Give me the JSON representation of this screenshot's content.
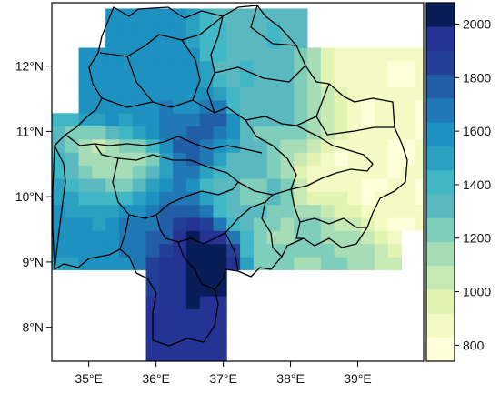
{
  "map": {
    "x_ticks": [
      "35°E",
      "36°E",
      "37°E",
      "38°E",
      "39°E"
    ],
    "y_ticks": [
      "12°N",
      "11°N",
      "10°N",
      "9°N",
      "8°N"
    ],
    "lon_range": [
      34.45,
      39.98
    ],
    "lat_range": [
      7.48,
      12.97
    ],
    "tick_lons": [
      35,
      36,
      37,
      38,
      39
    ],
    "tick_lats": [
      12,
      11,
      10,
      9,
      8
    ]
  },
  "colorbar": {
    "labels": [
      "2000",
      "1800",
      "1600",
      "1400",
      "1200",
      "1000",
      "800"
    ],
    "values": [
      2000,
      1800,
      1600,
      1400,
      1200,
      1000,
      800
    ],
    "min": 740,
    "max": 2080,
    "colors": [
      "#ffffd9",
      "#f3fac4",
      "#e3f3b2",
      "#c7e9b4",
      "#a6dcb6",
      "#7fcdbb",
      "#5ab9c0",
      "#41b6c4",
      "#2ca0c1",
      "#1d91c0",
      "#2078b4",
      "#225ea8",
      "#233f97",
      "#253494",
      "#081d58"
    ]
  },
  "chart_data": {
    "type": "heatmap",
    "xlabel": "",
    "ylabel": "",
    "x_tick_labels": [
      "35°E",
      "36°E",
      "37°E",
      "38°E",
      "39°E"
    ],
    "y_tick_labels": [
      "12°N",
      "11°N",
      "10°N",
      "9°N",
      "8°N"
    ],
    "colorbar_ticks": [
      800,
      1000,
      1200,
      1400,
      1600,
      1800,
      2000
    ],
    "value_range": [
      740,
      2080
    ],
    "grid_note": "gridded precipitation-like field, 0.2 degree cells, high values (~1900-2050) in south-central part near 36.5E 9N, low values (~800-900) in east near 39E 10.5-11.5N",
    "samples": [
      {
        "lon": 36.5,
        "lat": 9.1,
        "value": 2050
      },
      {
        "lon": 36.3,
        "lat": 8.0,
        "value": 1900
      },
      {
        "lon": 36.2,
        "lat": 9.5,
        "value": 1800
      },
      {
        "lon": 36.5,
        "lat": 10.9,
        "value": 1700
      },
      {
        "lon": 35.2,
        "lat": 9.5,
        "value": 1550
      },
      {
        "lon": 37.5,
        "lat": 12.1,
        "value": 1350
      },
      {
        "lon": 38.5,
        "lat": 9.3,
        "value": 1150
      },
      {
        "lon": 39.1,
        "lat": 10.3,
        "value": 900
      },
      {
        "lon": 39.0,
        "lat": 11.5,
        "value": 850
      },
      {
        "lon": 35.3,
        "lat": 10.2,
        "value": 1050
      }
    ]
  }
}
